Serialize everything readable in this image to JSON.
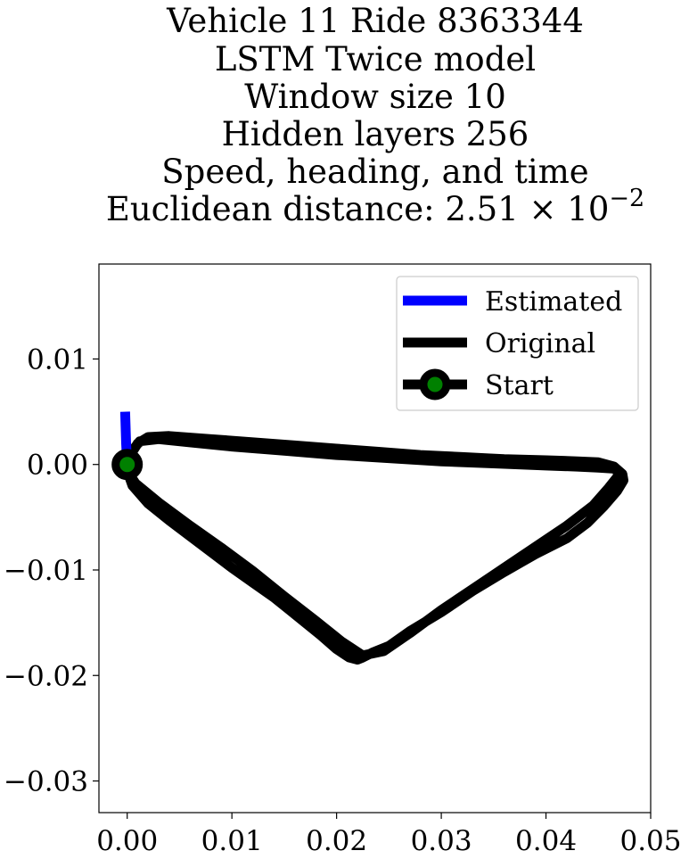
{
  "chart_data": {
    "type": "line",
    "title_lines": [
      "Vehicle 11 Ride 8363344",
      "LSTM Twice model",
      "Window size 10",
      "Hidden layers 256",
      "Speed, heading, and time",
      "Euclidean distance: 2.51 × 10",
      "−2"
    ],
    "xlabel": "",
    "ylabel": "",
    "xlim": [
      -0.0027,
      0.05
    ],
    "ylim": [
      -0.033,
      0.019
    ],
    "xticks": [
      0.0,
      0.01,
      0.02,
      0.03,
      0.04,
      0.05
    ],
    "xtick_labels": [
      "0.00",
      "0.01",
      "0.02",
      "0.03",
      "0.04",
      "0.05"
    ],
    "yticks": [
      0.01,
      0.0,
      -0.01,
      -0.02,
      -0.03
    ],
    "ytick_labels": [
      "0.01",
      "0.00",
      "−0.01",
      "−0.02",
      "−0.03"
    ],
    "grid": false,
    "legend_position": "top-right",
    "legend": [
      {
        "label": "Estimated",
        "color": "#0000ff",
        "marker": "none"
      },
      {
        "label": "Original",
        "color": "#000000",
        "marker": "none"
      },
      {
        "label": "Start",
        "color": "#000000",
        "marker": "circle",
        "marker_face": "#008000"
      }
    ],
    "series": [
      {
        "name": "Estimated",
        "color": "#0000ff",
        "x": [
          -0.0002,
          -0.0001,
          0.0
        ],
        "y": [
          0.005,
          0.002,
          0.0
        ]
      },
      {
        "name": "Original",
        "color": "#000000",
        "x": [
          0.0,
          0.0005,
          0.001,
          0.002,
          0.004,
          0.008,
          0.012,
          0.016,
          0.02,
          0.024,
          0.028,
          0.032,
          0.036,
          0.04,
          0.043,
          0.045,
          0.0465,
          0.0473,
          0.0474,
          0.0468,
          0.0455,
          0.044,
          0.042,
          0.039,
          0.036,
          0.033,
          0.03,
          0.027,
          0.025,
          0.0235,
          0.0225,
          0.022,
          0.0212,
          0.02,
          0.0185,
          0.017,
          0.0155,
          0.014,
          0.012,
          0.01,
          0.008,
          0.006,
          0.004,
          0.002,
          0.0005,
          0.0,
          0.0008,
          0.003,
          0.006,
          0.009,
          0.012,
          0.015,
          0.018,
          0.0205,
          0.0225,
          0.0245,
          0.027,
          0.03,
          0.033,
          0.036,
          0.039,
          0.042,
          0.0445,
          0.046,
          0.0468,
          0.047,
          0.0465,
          0.045,
          0.043,
          0.04,
          0.035,
          0.03,
          0.025,
          0.02,
          0.015,
          0.01,
          0.006,
          0.003,
          0.0012,
          0.0004,
          0.0
        ],
        "y": [
          0.0,
          0.0012,
          0.002,
          0.0026,
          0.0027,
          0.0024,
          0.0021,
          0.0018,
          0.0015,
          0.0012,
          0.0009,
          0.0007,
          0.0005,
          0.0004,
          0.0003,
          0.0002,
          -0.0002,
          -0.0009,
          -0.0015,
          -0.0025,
          -0.004,
          -0.0055,
          -0.007,
          -0.0085,
          -0.0102,
          -0.012,
          -0.014,
          -0.0158,
          -0.0172,
          -0.0178,
          -0.0183,
          -0.0185,
          -0.0183,
          -0.0175,
          -0.0162,
          -0.015,
          -0.0138,
          -0.0126,
          -0.0112,
          -0.0098,
          -0.0083,
          -0.0068,
          -0.0053,
          -0.0037,
          -0.002,
          -0.0006,
          -0.0018,
          -0.0036,
          -0.0058,
          -0.0079,
          -0.0101,
          -0.0125,
          -0.0148,
          -0.0168,
          -0.0181,
          -0.0177,
          -0.016,
          -0.0138,
          -0.0118,
          -0.0098,
          -0.0078,
          -0.0058,
          -0.0039,
          -0.0022,
          -0.0012,
          -0.0008,
          -0.0004,
          -0.0003,
          -0.0002,
          -0.0001,
          0.0001,
          0.0003,
          0.0006,
          0.0009,
          0.0013,
          0.0017,
          0.0021,
          0.0024,
          0.0022,
          0.0012,
          0.0
        ]
      },
      {
        "name": "Start",
        "color": "#000000",
        "marker": "circle",
        "marker_face": "#008000",
        "x": [
          0.0
        ],
        "y": [
          0.0
        ]
      }
    ]
  }
}
